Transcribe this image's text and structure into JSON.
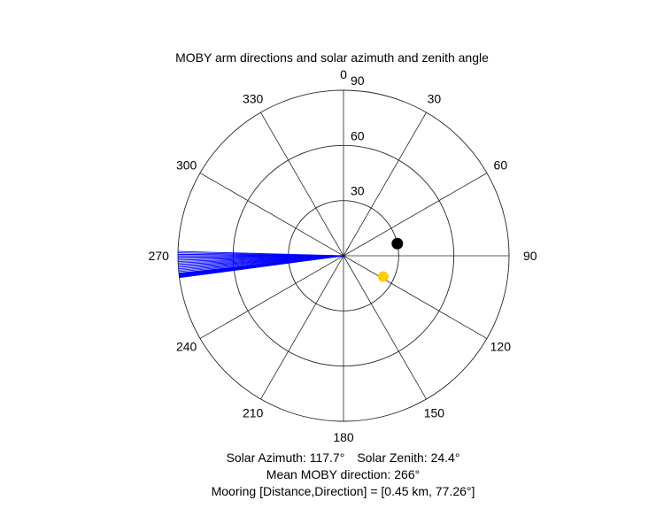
{
  "chart_data": {
    "type": "polar",
    "title": "MOBY arm directions and solar azimuth and zenith angle",
    "theta_zero": "top",
    "theta_direction": "clockwise",
    "theta_ticks": [
      0,
      30,
      60,
      90,
      120,
      150,
      180,
      210,
      240,
      270,
      300,
      330
    ],
    "r_ticks": [
      30,
      60,
      90
    ],
    "r_max": 90,
    "grid": true,
    "series": [
      {
        "kind": "arm-directions",
        "color": "#0000ff",
        "angles_deg": [
          266.0,
          266.5,
          267.0,
          267.5,
          268.0,
          268.5,
          269.0,
          269.5,
          270.0,
          270.5,
          271.0,
          271.5,
          265.5,
          265.0,
          264.5,
          264.0,
          263.8,
          263.6,
          263.4,
          263.2,
          263.0,
          262.8,
          262.6,
          262.4
        ],
        "r": 90
      },
      {
        "kind": "mooring",
        "color": "#000000",
        "marker": "filled-circle",
        "angle_deg": 77.26,
        "r": 30
      },
      {
        "kind": "sun",
        "color": "#ffcc00",
        "marker": "star",
        "angle_deg": 117.7,
        "r": 24.4
      }
    ]
  },
  "caption": {
    "solar_azimuth": "Solar Azimuth: 117.7°",
    "solar_zenith": "Solar Zenith: 24.4°",
    "mean_direction": "Mean MOBY direction: 266°",
    "mooring": "Mooring [Distance,Direction] = [0.45 km, 77.26°]"
  }
}
